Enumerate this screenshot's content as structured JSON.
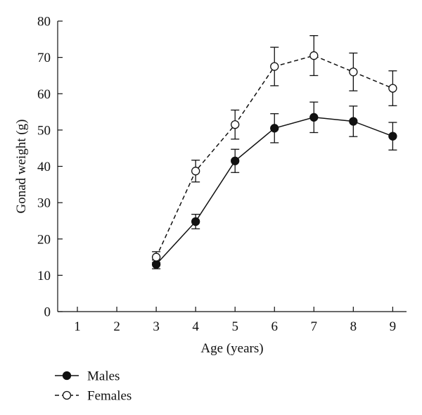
{
  "chart_data": {
    "type": "line",
    "xlabel": "Age (years)",
    "ylabel": "Gonad weight (g)",
    "xlim": [
      0.5,
      9.35
    ],
    "ylim": [
      0,
      80
    ],
    "x_ticks": [
      1,
      2,
      3,
      4,
      5,
      6,
      7,
      8,
      9
    ],
    "y_ticks": [
      0,
      10,
      20,
      30,
      40,
      50,
      60,
      70,
      80
    ],
    "grid": false,
    "legend_position": "bottom-left",
    "series": [
      {
        "name": "Males",
        "line_style": "solid",
        "marker": "filled-circle",
        "x": [
          3,
          4,
          5,
          6,
          7,
          8,
          9
        ],
        "y": [
          13,
          24.8,
          41.5,
          50.5,
          53.5,
          52.4,
          48.3
        ],
        "error": [
          1.2,
          2.0,
          3.2,
          4.0,
          4.2,
          4.2,
          3.8
        ]
      },
      {
        "name": "Females",
        "line_style": "dashed",
        "marker": "open-circle",
        "x": [
          3,
          4,
          5,
          6,
          7,
          8,
          9
        ],
        "y": [
          15,
          38.7,
          51.5,
          67.5,
          70.5,
          66,
          61.5
        ],
        "error": [
          1.5,
          3.0,
          4.0,
          5.3,
          5.5,
          5.2,
          4.8
        ]
      }
    ],
    "colors": {
      "ink": "#111111",
      "background": "#ffffff"
    }
  }
}
